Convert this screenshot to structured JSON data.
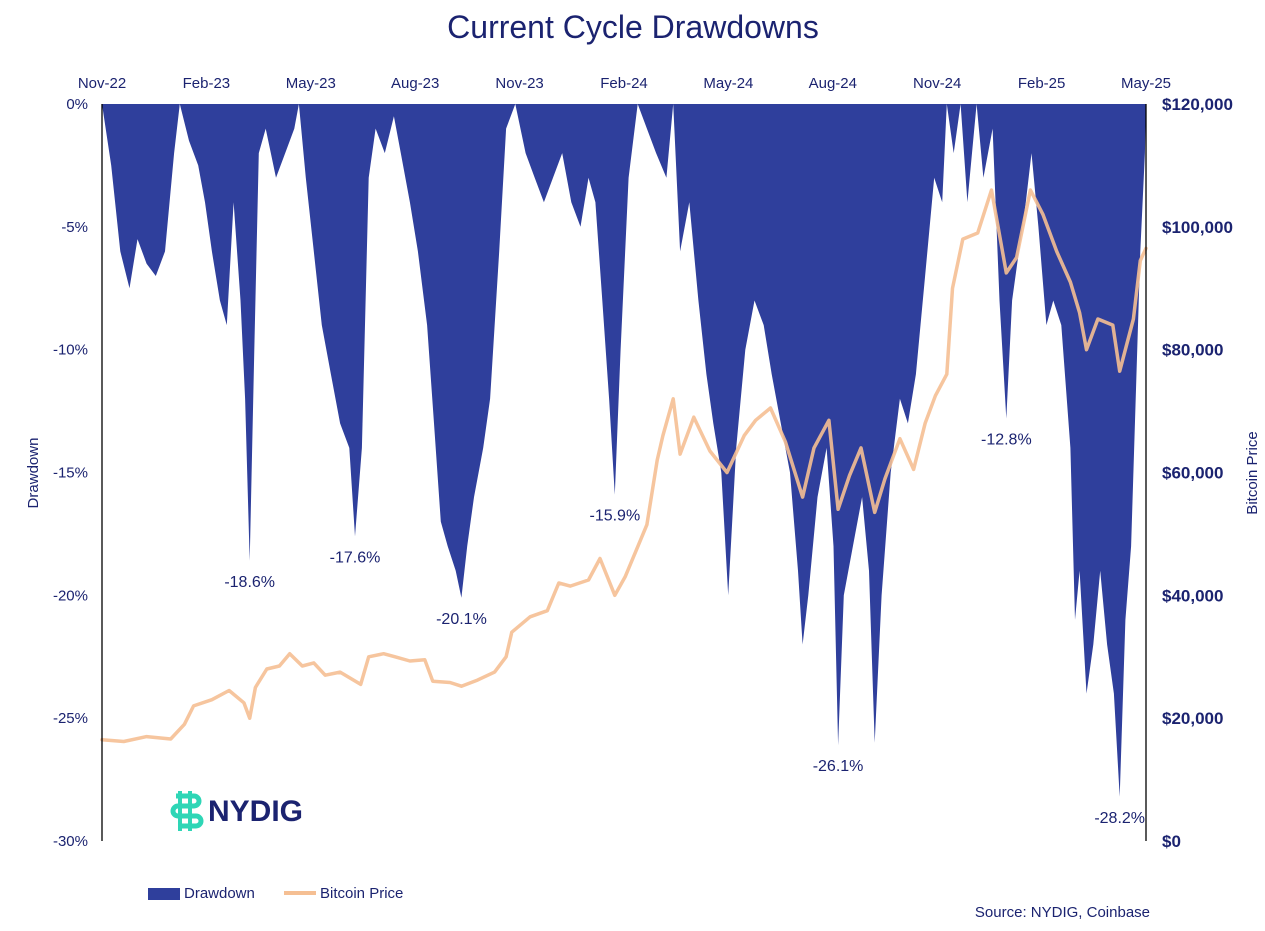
{
  "colors": {
    "drawdown": "#2f3f9c",
    "price": "#f5bf93",
    "title": "#1b2370",
    "text": "#1b2370",
    "logo_accent": "#2ed6b6"
  },
  "logo": {
    "text": "NYDIG",
    "icon": "nydig-logo-icon"
  },
  "source": "Source: NYDIG, Coinbase",
  "chart_data": {
    "type": "area",
    "title": "Current Cycle Drawdowns",
    "x_ticks": [
      "Nov-22",
      "Feb-23",
      "May-23",
      "Aug-23",
      "Nov-23",
      "Feb-24",
      "May-24",
      "Aug-24",
      "Nov-24",
      "Feb-25",
      "May-25"
    ],
    "x_range": [
      "2022-11-01",
      "2025-05-01"
    ],
    "y_left": {
      "label": "Drawdown",
      "ticks": [
        "0%",
        "-5%",
        "-10%",
        "-15%",
        "-20%",
        "-25%",
        "-30%"
      ],
      "range": [
        -30,
        0
      ]
    },
    "y_right": {
      "label": "Bitcoin Price",
      "ticks": [
        "$120,000",
        "$100,000",
        "$80,000",
        "$60,000",
        "$40,000",
        "$20,000",
        "$0"
      ],
      "range": [
        0,
        120000
      ]
    },
    "legend": [
      "Drawdown",
      "Bitcoin Price"
    ],
    "series": [
      {
        "name": "Drawdown",
        "kind": "area",
        "points": [
          [
            "2022-11-01",
            0
          ],
          [
            "2022-11-09",
            -2.5
          ],
          [
            "2022-11-17",
            -6
          ],
          [
            "2022-11-25",
            -7.5
          ],
          [
            "2022-12-02",
            -5.5
          ],
          [
            "2022-12-10",
            -6.5
          ],
          [
            "2022-12-18",
            -7
          ],
          [
            "2022-12-26",
            -6
          ],
          [
            "2023-01-03",
            -2
          ],
          [
            "2023-01-08",
            0
          ],
          [
            "2023-01-16",
            -1.5
          ],
          [
            "2023-01-24",
            -2.5
          ],
          [
            "2023-01-30",
            -4
          ],
          [
            "2023-02-05",
            -6
          ],
          [
            "2023-02-12",
            -8
          ],
          [
            "2023-02-18",
            -9
          ],
          [
            "2023-02-24",
            -4
          ],
          [
            "2023-03-02",
            -8
          ],
          [
            "2023-03-06",
            -12
          ],
          [
            "2023-03-10",
            -18.6
          ],
          [
            "2023-03-14",
            -10
          ],
          [
            "2023-03-18",
            -2
          ],
          [
            "2023-03-24",
            -1
          ],
          [
            "2023-04-02",
            -3
          ],
          [
            "2023-04-10",
            -2
          ],
          [
            "2023-04-18",
            -1
          ],
          [
            "2023-04-22",
            0
          ],
          [
            "2023-04-28",
            -3
          ],
          [
            "2023-05-05",
            -6
          ],
          [
            "2023-05-12",
            -9
          ],
          [
            "2023-05-20",
            -11
          ],
          [
            "2023-05-28",
            -13
          ],
          [
            "2023-06-05",
            -14
          ],
          [
            "2023-06-10",
            -17.6
          ],
          [
            "2023-06-16",
            -14
          ],
          [
            "2023-06-22",
            -3
          ],
          [
            "2023-06-28",
            -1
          ],
          [
            "2023-07-06",
            -2
          ],
          [
            "2023-07-14",
            -0.5
          ],
          [
            "2023-07-20",
            -2
          ],
          [
            "2023-07-28",
            -4
          ],
          [
            "2023-08-04",
            -6
          ],
          [
            "2023-08-12",
            -9
          ],
          [
            "2023-08-18",
            -13
          ],
          [
            "2023-08-24",
            -17
          ],
          [
            "2023-08-30",
            -18
          ],
          [
            "2023-09-06",
            -19
          ],
          [
            "2023-09-11",
            -20.1
          ],
          [
            "2023-09-16",
            -18
          ],
          [
            "2023-09-22",
            -16
          ],
          [
            "2023-09-30",
            -14
          ],
          [
            "2023-10-06",
            -12
          ],
          [
            "2023-10-14",
            -6
          ],
          [
            "2023-10-20",
            -1
          ],
          [
            "2023-10-28",
            0
          ],
          [
            "2023-11-06",
            -2
          ],
          [
            "2023-11-14",
            -3
          ],
          [
            "2023-11-22",
            -4
          ],
          [
            "2023-11-30",
            -3
          ],
          [
            "2023-12-08",
            -2
          ],
          [
            "2023-12-16",
            -4
          ],
          [
            "2023-12-24",
            -5
          ],
          [
            "2023-12-31",
            -3
          ],
          [
            "2024-01-06",
            -4
          ],
          [
            "2024-01-12",
            -8
          ],
          [
            "2024-01-18",
            -12
          ],
          [
            "2024-01-23",
            -15.9
          ],
          [
            "2024-01-28",
            -10
          ],
          [
            "2024-02-04",
            -3
          ],
          [
            "2024-02-12",
            0
          ],
          [
            "2024-02-20",
            -1
          ],
          [
            "2024-02-28",
            -2
          ],
          [
            "2024-03-08",
            -3
          ],
          [
            "2024-03-14",
            0
          ],
          [
            "2024-03-20",
            -6
          ],
          [
            "2024-03-28",
            -4
          ],
          [
            "2024-04-05",
            -8
          ],
          [
            "2024-04-12",
            -11
          ],
          [
            "2024-04-18",
            -13
          ],
          [
            "2024-04-25",
            -15
          ],
          [
            "2024-05-01",
            -20
          ],
          [
            "2024-05-08",
            -14
          ],
          [
            "2024-05-16",
            -10
          ],
          [
            "2024-05-24",
            -8
          ],
          [
            "2024-06-01",
            -9
          ],
          [
            "2024-06-08",
            -11
          ],
          [
            "2024-06-16",
            -13
          ],
          [
            "2024-06-24",
            -15
          ],
          [
            "2024-07-01",
            -19
          ],
          [
            "2024-07-05",
            -22
          ],
          [
            "2024-07-10",
            -20
          ],
          [
            "2024-07-18",
            -16
          ],
          [
            "2024-07-26",
            -14
          ],
          [
            "2024-08-01",
            -18
          ],
          [
            "2024-08-05",
            -26.1
          ],
          [
            "2024-08-10",
            -20
          ],
          [
            "2024-08-18",
            -18
          ],
          [
            "2024-08-26",
            -16
          ],
          [
            "2024-09-01",
            -19
          ],
          [
            "2024-09-06",
            -26
          ],
          [
            "2024-09-12",
            -20
          ],
          [
            "2024-09-20",
            -15
          ],
          [
            "2024-09-28",
            -12
          ],
          [
            "2024-10-05",
            -13
          ],
          [
            "2024-10-12",
            -11
          ],
          [
            "2024-10-20",
            -7
          ],
          [
            "2024-10-28",
            -3
          ],
          [
            "2024-11-04",
            -4
          ],
          [
            "2024-11-08",
            0
          ],
          [
            "2024-11-14",
            -2
          ],
          [
            "2024-11-20",
            0
          ],
          [
            "2024-11-26",
            -4
          ],
          [
            "2024-12-04",
            0
          ],
          [
            "2024-12-10",
            -3
          ],
          [
            "2024-12-18",
            -1
          ],
          [
            "2024-12-24",
            -8
          ],
          [
            "2024-12-30",
            -12.8
          ],
          [
            "2025-01-04",
            -8
          ],
          [
            "2025-01-10",
            -6
          ],
          [
            "2025-01-16",
            -4
          ],
          [
            "2025-01-21",
            -2
          ],
          [
            "2025-01-27",
            -5
          ],
          [
            "2025-02-03",
            -9
          ],
          [
            "2025-02-09",
            -8
          ],
          [
            "2025-02-16",
            -9
          ],
          [
            "2025-02-24",
            -14
          ],
          [
            "2025-02-28",
            -21
          ],
          [
            "2025-03-04",
            -19
          ],
          [
            "2025-03-10",
            -24
          ],
          [
            "2025-03-16",
            -22
          ],
          [
            "2025-03-22",
            -19
          ],
          [
            "2025-03-28",
            -22
          ],
          [
            "2025-04-03",
            -24
          ],
          [
            "2025-04-08",
            -28.2
          ],
          [
            "2025-04-13",
            -21
          ],
          [
            "2025-04-18",
            -18
          ],
          [
            "2025-04-22",
            -12
          ],
          [
            "2025-04-26",
            -6
          ],
          [
            "2025-04-30",
            -2
          ],
          [
            "2025-05-01",
            0
          ]
        ]
      },
      {
        "name": "Bitcoin Price",
        "kind": "line",
        "points": [
          [
            "2022-11-01",
            16500
          ],
          [
            "2022-11-20",
            16200
          ],
          [
            "2022-12-10",
            17000
          ],
          [
            "2022-12-31",
            16600
          ],
          [
            "2023-01-12",
            19000
          ],
          [
            "2023-01-20",
            22000
          ],
          [
            "2023-02-05",
            23000
          ],
          [
            "2023-02-20",
            24500
          ],
          [
            "2023-03-05",
            22500
          ],
          [
            "2023-03-10",
            20000
          ],
          [
            "2023-03-15",
            25000
          ],
          [
            "2023-03-25",
            28000
          ],
          [
            "2023-04-05",
            28500
          ],
          [
            "2023-04-14",
            30500
          ],
          [
            "2023-04-25",
            28500
          ],
          [
            "2023-05-05",
            29000
          ],
          [
            "2023-05-15",
            27000
          ],
          [
            "2023-05-28",
            27500
          ],
          [
            "2023-06-15",
            25500
          ],
          [
            "2023-06-22",
            30000
          ],
          [
            "2023-07-05",
            30500
          ],
          [
            "2023-07-15",
            30000
          ],
          [
            "2023-07-28",
            29300
          ],
          [
            "2023-08-10",
            29500
          ],
          [
            "2023-08-17",
            26000
          ],
          [
            "2023-09-01",
            25800
          ],
          [
            "2023-09-11",
            25200
          ],
          [
            "2023-09-25",
            26200
          ],
          [
            "2023-10-10",
            27500
          ],
          [
            "2023-10-20",
            30000
          ],
          [
            "2023-10-25",
            34000
          ],
          [
            "2023-11-10",
            36500
          ],
          [
            "2023-11-25",
            37500
          ],
          [
            "2023-12-05",
            42000
          ],
          [
            "2023-12-15",
            41500
          ],
          [
            "2023-12-31",
            42500
          ],
          [
            "2024-01-10",
            46000
          ],
          [
            "2024-01-23",
            40000
          ],
          [
            "2024-02-01",
            43000
          ],
          [
            "2024-02-10",
            47000
          ],
          [
            "2024-02-20",
            51500
          ],
          [
            "2024-02-29",
            62000
          ],
          [
            "2024-03-05",
            66000
          ],
          [
            "2024-03-14",
            72000
          ],
          [
            "2024-03-20",
            63000
          ],
          [
            "2024-04-01",
            69000
          ],
          [
            "2024-04-15",
            63500
          ],
          [
            "2024-04-30",
            60000
          ],
          [
            "2024-05-15",
            66000
          ],
          [
            "2024-05-25",
            68500
          ],
          [
            "2024-06-07",
            70500
          ],
          [
            "2024-06-20",
            65000
          ],
          [
            "2024-07-05",
            56000
          ],
          [
            "2024-07-15",
            64000
          ],
          [
            "2024-07-28",
            68500
          ],
          [
            "2024-08-05",
            54000
          ],
          [
            "2024-08-15",
            59500
          ],
          [
            "2024-08-25",
            64000
          ],
          [
            "2024-09-06",
            53500
          ],
          [
            "2024-09-15",
            59000
          ],
          [
            "2024-09-28",
            65500
          ],
          [
            "2024-10-10",
            60500
          ],
          [
            "2024-10-20",
            68000
          ],
          [
            "2024-10-29",
            72500
          ],
          [
            "2024-11-08",
            76000
          ],
          [
            "2024-11-13",
            90000
          ],
          [
            "2024-11-22",
            98000
          ],
          [
            "2024-12-05",
            99000
          ],
          [
            "2024-12-17",
            106000
          ],
          [
            "2024-12-30",
            92500
          ],
          [
            "2025-01-08",
            95000
          ],
          [
            "2025-01-20",
            106000
          ],
          [
            "2025-01-31",
            102000
          ],
          [
            "2025-02-12",
            96000
          ],
          [
            "2025-02-24",
            91000
          ],
          [
            "2025-03-04",
            86000
          ],
          [
            "2025-03-10",
            80000
          ],
          [
            "2025-03-20",
            85000
          ],
          [
            "2025-04-02",
            84000
          ],
          [
            "2025-04-08",
            76500
          ],
          [
            "2025-04-20",
            85000
          ],
          [
            "2025-04-26",
            94500
          ],
          [
            "2025-05-01",
            96500
          ]
        ]
      }
    ],
    "annotations": [
      {
        "date": "2023-03-10",
        "value": -18.6,
        "label": "-18.6%"
      },
      {
        "date": "2023-06-10",
        "value": -17.6,
        "label": "-17.6%"
      },
      {
        "date": "2023-09-11",
        "value": -20.1,
        "label": "-20.1%"
      },
      {
        "date": "2024-01-23",
        "value": -15.9,
        "label": "-15.9%"
      },
      {
        "date": "2024-08-05",
        "value": -26.1,
        "label": "-26.1%"
      },
      {
        "date": "2024-12-30",
        "value": -12.8,
        "label": "-12.8%"
      },
      {
        "date": "2025-04-08",
        "value": -28.2,
        "label": "-28.2%"
      }
    ]
  }
}
